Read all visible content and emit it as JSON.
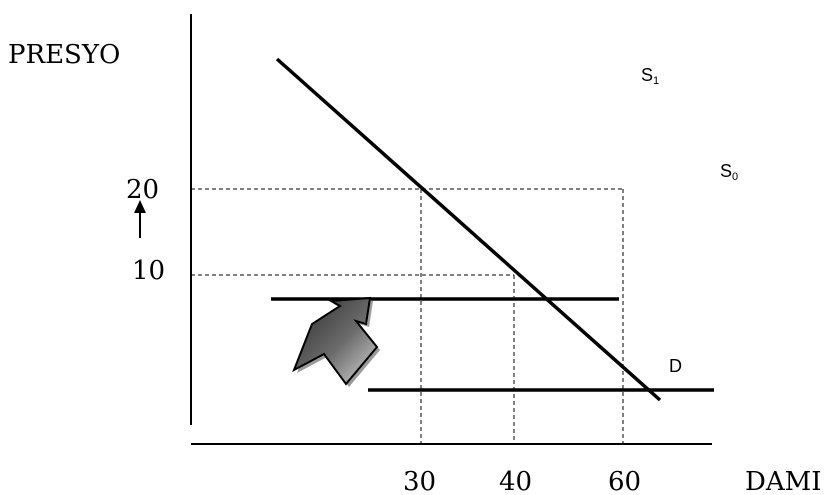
{
  "axes": {
    "y_label": "PRESYO",
    "x_label": "DAMI",
    "y_ticks": [
      "20",
      "10"
    ],
    "x_ticks": [
      "30",
      "40",
      "60"
    ]
  },
  "curves": {
    "s1": {
      "main": "S",
      "sub": "1"
    },
    "s0": {
      "main": "S",
      "sub": "0"
    },
    "d": "D"
  },
  "colors": {
    "ink": "#000000",
    "background": "#ffffff"
  },
  "icons": {
    "price_increase": "arrow-up-icon",
    "shift": "thick-curved-arrow-icon"
  }
}
